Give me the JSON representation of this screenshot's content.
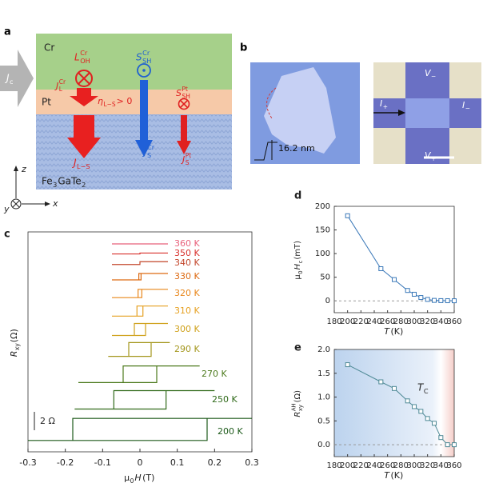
{
  "panel_a": {
    "label": "a",
    "cr": "Cr",
    "pt": "Pt",
    "fgt": [
      {
        "base": "Fe",
        "sub": "3"
      },
      {
        "base": "GaTe",
        "sub": "2"
      }
    ],
    "current": [
      {
        "base": "J",
        "sub": "c"
      }
    ],
    "l_oh": [
      {
        "base": "L",
        "sup": "Cr",
        "sub": "OH"
      }
    ],
    "j_l": [
      {
        "base": "J",
        "sup": "Cr",
        "sub": "L"
      }
    ],
    "eta": [
      {
        "base": "η",
        "sub": "L−S"
      },
      {
        "base": "> 0"
      }
    ],
    "j_ls": [
      {
        "base": "J",
        "sub": "L−S"
      }
    ],
    "s_sh_cr": [
      {
        "base": "S",
        "sup": "Cr",
        "sub": "SH"
      }
    ],
    "j_s_cr": [
      {
        "base": "J",
        "sup": "Cr",
        "sub": "S"
      }
    ],
    "s_sh_pt": [
      {
        "base": "S",
        "sup": "Pt",
        "sub": "SH"
      }
    ],
    "j_s_pt": [
      {
        "base": "J",
        "sup": "Pt",
        "sub": "S"
      }
    ],
    "axis_z": "z",
    "axis_y": "y",
    "axis_x": "x"
  },
  "panel_b": {
    "label": "b",
    "thickness": "16.2 nm",
    "v_minus": [
      {
        "base": "V",
        "sub": "−"
      }
    ],
    "v_plus": [
      {
        "base": "V",
        "sub": "+"
      }
    ],
    "i_plus": [
      {
        "base": "I",
        "sub": "+"
      }
    ],
    "i_minus": [
      {
        "base": "I",
        "sub": "−"
      }
    ]
  },
  "chart_data": [
    {
      "type": "hysteresis",
      "panel": "c",
      "xlabel": [
        {
          "base": "μ",
          "sub": "0"
        },
        {
          "base": "H"
        },
        {
          "base": " (T)"
        }
      ],
      "ylabel": [
        {
          "base": "R",
          "sub": "xy"
        },
        {
          "base": " (Ω)"
        }
      ],
      "xlim": [
        -0.3,
        0.3
      ],
      "xticks": [
        -0.3,
        -0.2,
        -0.1,
        0,
        0.1,
        0.2,
        0.3
      ],
      "scale_bar": {
        "value": 2,
        "label": "2 Ω"
      },
      "series": [
        {
          "name": "360 K",
          "color": "#e8607a",
          "coercive_field": 0,
          "step": 0,
          "field_range": [
            -0.075,
            0.075
          ]
        },
        {
          "name": "350 K",
          "color": "#d8302c",
          "coercive_field": 0,
          "step": 0.1,
          "field_range": [
            -0.075,
            0.075
          ]
        },
        {
          "name": "340 K",
          "color": "#c2452a",
          "coercive_field": 0,
          "step": 0.3,
          "field_range": [
            -0.075,
            0.075
          ]
        },
        {
          "name": "330 K",
          "color": "#dd6a12",
          "coercive_field": 0.003,
          "step": 0.7,
          "field_range": [
            -0.075,
            0.075
          ]
        },
        {
          "name": "320 K",
          "color": "#e8861a",
          "coercive_field": 0.005,
          "step": 0.9,
          "field_range": [
            -0.075,
            0.075
          ]
        },
        {
          "name": "310 K",
          "color": "#e6a020",
          "coercive_field": 0.008,
          "step": 1.1,
          "field_range": [
            -0.075,
            0.075
          ]
        },
        {
          "name": "300 K",
          "color": "#cfa11a",
          "coercive_field": 0.015,
          "step": 1.3,
          "field_range": [
            -0.075,
            0.075
          ]
        },
        {
          "name": "290 K",
          "color": "#a3961c",
          "coercive_field": 0.03,
          "step": 1.5,
          "field_range": [
            -0.085,
            0.08
          ]
        },
        {
          "name": "270 K",
          "color": "#4c7a1c",
          "coercive_field": 0.045,
          "step": 1.8,
          "field_range": [
            -0.165,
            0.16
          ]
        },
        {
          "name": "250 K",
          "color": "#306a1a",
          "coercive_field": 0.07,
          "step": 2.0,
          "field_range": [
            -0.175,
            0.2
          ]
        },
        {
          "name": "200 K",
          "color": "#1d5a1a",
          "coercive_field": 0.18,
          "step": 2.4,
          "field_range": [
            -0.3,
            0.3
          ]
        }
      ]
    },
    {
      "type": "line",
      "panel": "d",
      "xlabel": [
        {
          "base": "T"
        },
        {
          "base": " (K)"
        }
      ],
      "ylabel": [
        {
          "base": "μ",
          "sub": "0"
        },
        {
          "base": "H",
          "sub": "c"
        },
        {
          "base": " (mT)"
        }
      ],
      "x": [
        200,
        250,
        270,
        290,
        300,
        310,
        320,
        330,
        340,
        350,
        360
      ],
      "series": [
        {
          "color": "#3a78b8",
          "values": [
            180,
            68,
            45,
            22,
            14,
            7,
            3,
            1,
            0.5,
            0.3,
            0.2
          ]
        }
      ],
      "xlim": [
        180,
        360
      ],
      "xticks": [
        180,
        200,
        220,
        240,
        260,
        280,
        300,
        320,
        340,
        360
      ],
      "ylim": [
        -25,
        200
      ],
      "yticks": [
        0,
        50,
        100,
        150,
        200
      ],
      "reference_line": 0
    },
    {
      "type": "line",
      "panel": "e",
      "xlabel": [
        {
          "base": "T"
        },
        {
          "base": " (K)"
        }
      ],
      "ylabel": [
        {
          "base": "R",
          "sup": "AH",
          "sub": "xy"
        },
        {
          "base": " (Ω)"
        }
      ],
      "annotation": [
        {
          "base": "T",
          "sub": "C"
        }
      ],
      "x": [
        200,
        250,
        270,
        290,
        300,
        310,
        320,
        330,
        340,
        350,
        360
      ],
      "series": [
        {
          "color": "#4f8a96",
          "values": [
            1.68,
            1.32,
            1.18,
            0.92,
            0.8,
            0.7,
            0.55,
            0.45,
            0.15,
            0.0,
            0.0
          ]
        }
      ],
      "xlim": [
        180,
        360
      ],
      "xticks": [
        180,
        200,
        220,
        240,
        260,
        280,
        300,
        320,
        340,
        360
      ],
      "ylim": [
        -0.25,
        2.0
      ],
      "yticks": [
        {
          "value": 0,
          "label": "0.0"
        },
        {
          "value": 0.5,
          "label": "0.5"
        },
        {
          "value": 1,
          "label": "1.0"
        },
        {
          "value": 1.5,
          "label": "1.5"
        },
        {
          "value": 2,
          "label": "2.0"
        }
      ],
      "reference_line": 0
    }
  ]
}
